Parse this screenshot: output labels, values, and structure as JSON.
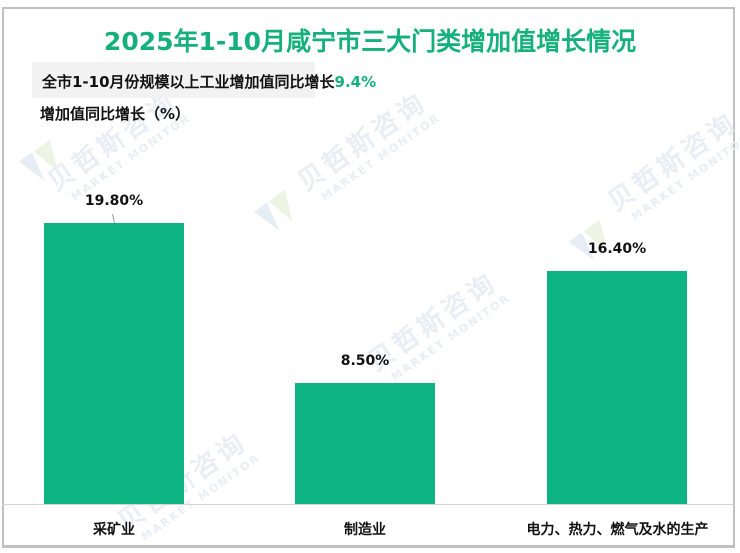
{
  "title": "2025年1-10月咸宁市三大门类增加值增长情况",
  "note": {
    "prefix": "全市1-10月份规模以上工业增加值同比增长",
    "highlight": "9.4%"
  },
  "watermark": {
    "cn": "贝哲斯咨询",
    "en": "MARKET MONITOR"
  },
  "colors": {
    "title": "#16b07c",
    "bar": "#0db482",
    "highlight": "#16b07c"
  },
  "chart_data": {
    "type": "bar",
    "title": "2025年1-10月咸宁市三大门类增加值增长情况",
    "subtitle": "全市1-10月份规模以上工业增加值同比增长9.4%",
    "xlabel": "",
    "ylabel": "增加值同比增长（%）",
    "categories": [
      "采矿业",
      "制造业",
      "电力、热力、燃气及水的生产"
    ],
    "values": [
      19.8,
      8.5,
      16.4
    ],
    "value_labels": [
      "19.80%",
      "8.50%",
      "16.40%"
    ],
    "ylim": [
      0,
      25
    ],
    "grid": false,
    "legend": "none"
  }
}
